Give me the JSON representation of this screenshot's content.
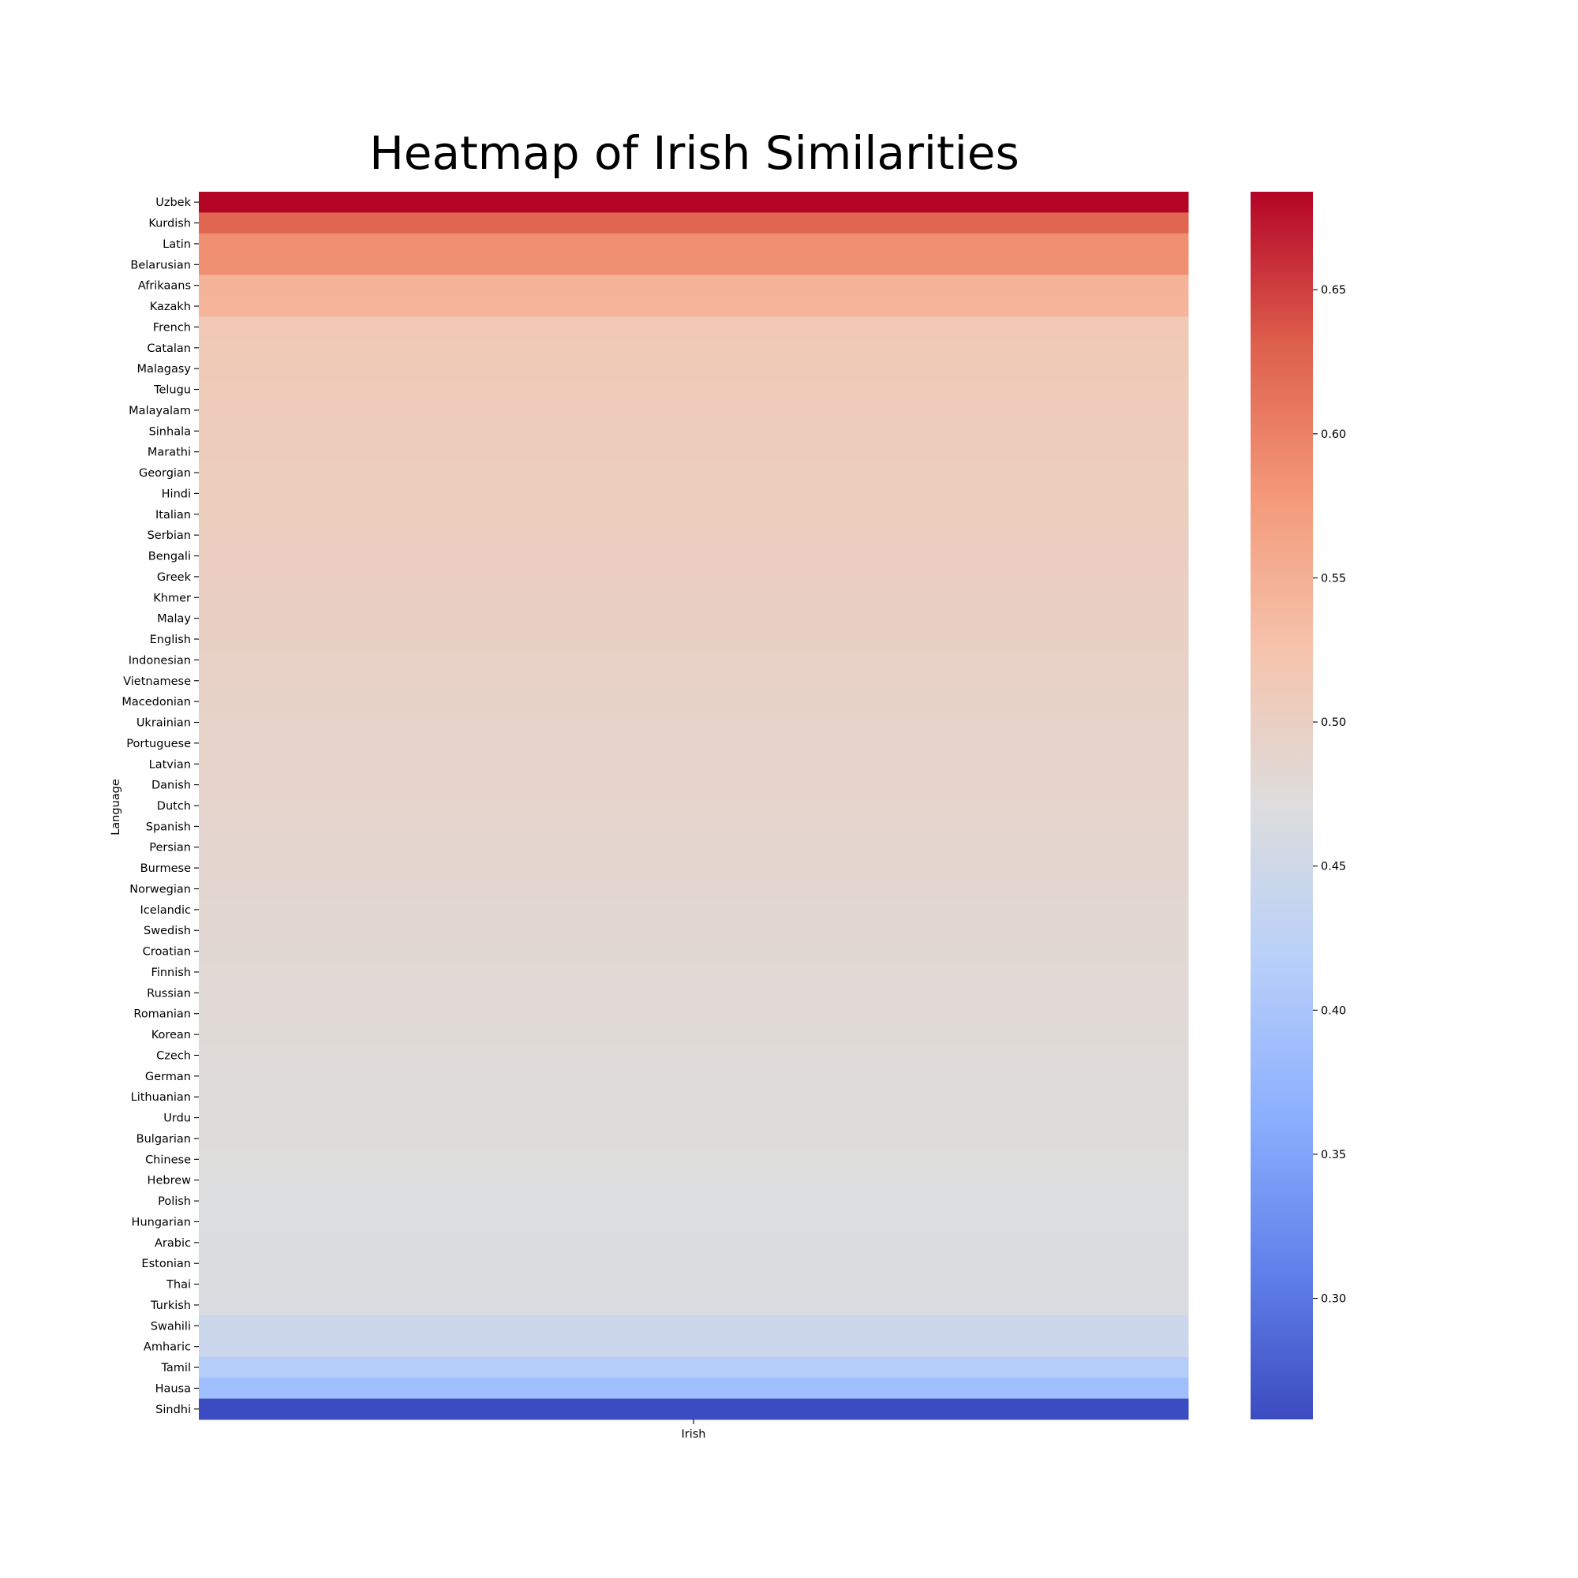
{
  "chart_data": {
    "type": "heatmap",
    "title": "Heatmap of Irish Similarities",
    "xlabel": "",
    "ylabel": "Language",
    "columns": [
      "Irish"
    ],
    "rows": [
      "Uzbek",
      "Kurdish",
      "Latin",
      "Belarusian",
      "Afrikaans",
      "Kazakh",
      "French",
      "Catalan",
      "Malagasy",
      "Telugu",
      "Malayalam",
      "Sinhala",
      "Marathi",
      "Georgian",
      "Hindi",
      "Italian",
      "Serbian",
      "Bengali",
      "Greek",
      "Khmer",
      "Malay",
      "English",
      "Indonesian",
      "Vietnamese",
      "Macedonian",
      "Ukrainian",
      "Portuguese",
      "Latvian",
      "Danish",
      "Dutch",
      "Spanish",
      "Persian",
      "Burmese",
      "Norwegian",
      "Icelandic",
      "Swedish",
      "Croatian",
      "Finnish",
      "Russian",
      "Romanian",
      "Korean",
      "Czech",
      "German",
      "Lithuanian",
      "Urdu",
      "Bulgarian",
      "Chinese",
      "Hebrew",
      "Polish",
      "Hungarian",
      "Arabic",
      "Estonian",
      "Thai",
      "Turkish",
      "Swahili",
      "Amharic",
      "Tamil",
      "Hausa",
      "Sindhi"
    ],
    "values": [
      0.684,
      0.625,
      0.588,
      0.587,
      0.544,
      0.543,
      0.515,
      0.513,
      0.511,
      0.51,
      0.509,
      0.508,
      0.507,
      0.506,
      0.505,
      0.504,
      0.503,
      0.502,
      0.501,
      0.5,
      0.499,
      0.498,
      0.496,
      0.495,
      0.494,
      0.493,
      0.492,
      0.491,
      0.49,
      0.489,
      0.488,
      0.487,
      0.486,
      0.485,
      0.484,
      0.483,
      0.482,
      0.481,
      0.48,
      0.479,
      0.478,
      0.477,
      0.476,
      0.475,
      0.474,
      0.473,
      0.472,
      0.471,
      0.47,
      0.469,
      0.468,
      0.467,
      0.466,
      0.465,
      0.445,
      0.444,
      0.414,
      0.387,
      0.258
    ],
    "colorbar": {
      "colormap": "coolwarm",
      "vmin": 0.258,
      "vmax": 0.684,
      "ticks": [
        0.3,
        0.35,
        0.4,
        0.45,
        0.5,
        0.55,
        0.6,
        0.65
      ],
      "tick_labels": [
        "0.30",
        "0.35",
        "0.40",
        "0.45",
        "0.50",
        "0.55",
        "0.60",
        "0.65"
      ]
    }
  }
}
